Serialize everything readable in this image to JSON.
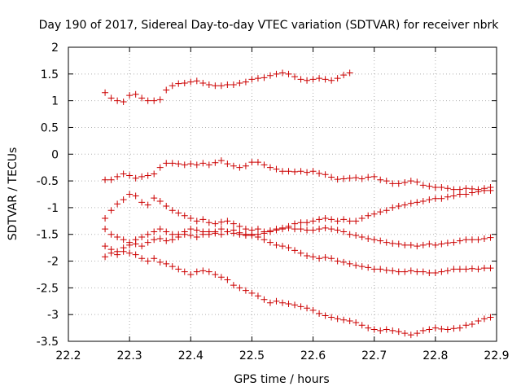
{
  "chart_data": {
    "type": "scatter",
    "title": "Day 190 of 2017, Sidereal Day-to-day VTEC variation (SDTVAR) for receiver nbrk",
    "xlabel": "GPS time / hours",
    "ylabel": "SDTVAR / TECUs",
    "xlim": [
      22.2,
      22.9
    ],
    "ylim": [
      -3.5,
      2
    ],
    "xticks": [
      "22.2",
      "22.3",
      "22.4",
      "22.5",
      "22.6",
      "22.7",
      "22.8",
      "22.9"
    ],
    "yticks": [
      "-3.5",
      "-3",
      "-2.5",
      "-2",
      "-1.5",
      "-1",
      "-0.5",
      "0",
      "0.5",
      "1",
      "1.5",
      "2"
    ],
    "grid": true,
    "marker": "+",
    "color": "#cc0000",
    "series": [
      {
        "name": "s1",
        "x": [
          22.26,
          22.27,
          22.28,
          22.29,
          22.3,
          22.31,
          22.32,
          22.33,
          22.34,
          22.35,
          22.36,
          22.37,
          22.38,
          22.39,
          22.4,
          22.41,
          22.42,
          22.43,
          22.44,
          22.45,
          22.46,
          22.47,
          22.48,
          22.49,
          22.5,
          22.51,
          22.52,
          22.53,
          22.54,
          22.55,
          22.56,
          22.57,
          22.58,
          22.59,
          22.6,
          22.61,
          22.62,
          22.63,
          22.64,
          22.65,
          22.66
        ],
        "y": [
          1.15,
          1.05,
          1.0,
          0.98,
          1.1,
          1.12,
          1.05,
          1.0,
          1.0,
          1.02,
          1.2,
          1.28,
          1.32,
          1.33,
          1.35,
          1.37,
          1.33,
          1.3,
          1.28,
          1.28,
          1.3,
          1.3,
          1.33,
          1.35,
          1.4,
          1.42,
          1.43,
          1.47,
          1.5,
          1.52,
          1.5,
          1.45,
          1.4,
          1.38,
          1.4,
          1.42,
          1.4,
          1.38,
          1.42,
          1.48,
          1.52
        ]
      },
      {
        "name": "s2",
        "x": [
          22.26,
          22.27,
          22.28,
          22.29,
          22.3,
          22.31,
          22.32,
          22.33,
          22.34,
          22.35,
          22.36,
          22.37,
          22.38,
          22.39,
          22.4,
          22.41,
          22.42,
          22.43,
          22.44,
          22.45,
          22.46,
          22.47,
          22.48,
          22.49,
          22.5,
          22.51,
          22.52,
          22.53,
          22.54,
          22.55,
          22.56,
          22.57,
          22.58,
          22.59,
          22.6,
          22.61,
          22.62,
          22.63,
          22.64,
          22.65,
          22.66,
          22.67,
          22.68,
          22.69,
          22.7,
          22.71,
          22.72,
          22.73,
          22.74,
          22.75,
          22.76,
          22.77,
          22.78,
          22.79,
          22.8,
          22.81,
          22.82,
          22.83,
          22.84,
          22.85,
          22.86,
          22.87,
          22.88,
          22.89
        ],
        "y": [
          -0.48,
          -0.48,
          -0.42,
          -0.37,
          -0.4,
          -0.45,
          -0.42,
          -0.4,
          -0.37,
          -0.25,
          -0.17,
          -0.17,
          -0.18,
          -0.2,
          -0.18,
          -0.2,
          -0.17,
          -0.2,
          -0.16,
          -0.12,
          -0.18,
          -0.22,
          -0.25,
          -0.22,
          -0.15,
          -0.15,
          -0.2,
          -0.25,
          -0.28,
          -0.32,
          -0.32,
          -0.33,
          -0.32,
          -0.34,
          -0.32,
          -0.36,
          -0.38,
          -0.43,
          -0.47,
          -0.46,
          -0.45,
          -0.44,
          -0.46,
          -0.43,
          -0.42,
          -0.48,
          -0.5,
          -0.55,
          -0.55,
          -0.53,
          -0.5,
          -0.52,
          -0.58,
          -0.6,
          -0.62,
          -0.62,
          -0.64,
          -0.66,
          -0.66,
          -0.64,
          -0.65,
          -0.66,
          -0.64,
          -0.62
        ]
      },
      {
        "name": "s3",
        "x": [
          22.26,
          22.27,
          22.28,
          22.29,
          22.3,
          22.31,
          22.32,
          22.33,
          22.34,
          22.35,
          22.36,
          22.37,
          22.38,
          22.39,
          22.4,
          22.41,
          22.42,
          22.43,
          22.44,
          22.45,
          22.46,
          22.47,
          22.48,
          22.49,
          22.5,
          22.51,
          22.52,
          22.53,
          22.54,
          22.55,
          22.56,
          22.57,
          22.58,
          22.59,
          22.6,
          22.61,
          22.62,
          22.63,
          22.64,
          22.65,
          22.66,
          22.67,
          22.68,
          22.69,
          22.7,
          22.71,
          22.72,
          22.73,
          22.74,
          22.75,
          22.76,
          22.77,
          22.78,
          22.79,
          22.8,
          22.81,
          22.82,
          22.83,
          22.84,
          22.85,
          22.86,
          22.87,
          22.88,
          22.89
        ],
        "y": [
          -1.2,
          -1.05,
          -0.93,
          -0.85,
          -0.75,
          -0.78,
          -0.9,
          -0.95,
          -0.82,
          -0.88,
          -0.97,
          -1.05,
          -1.1,
          -1.15,
          -1.2,
          -1.25,
          -1.22,
          -1.28,
          -1.3,
          -1.27,
          -1.25,
          -1.3,
          -1.35,
          -1.4,
          -1.42,
          -1.4,
          -1.45,
          -1.43,
          -1.4,
          -1.38,
          -1.35,
          -1.3,
          -1.28,
          -1.28,
          -1.25,
          -1.22,
          -1.2,
          -1.22,
          -1.25,
          -1.22,
          -1.25,
          -1.25,
          -1.2,
          -1.15,
          -1.12,
          -1.08,
          -1.05,
          -1.0,
          -0.97,
          -0.95,
          -0.92,
          -0.9,
          -0.88,
          -0.85,
          -0.83,
          -0.83,
          -0.8,
          -0.78,
          -0.75,
          -0.75,
          -0.72,
          -0.7,
          -0.68,
          -0.68
        ]
      },
      {
        "name": "s4",
        "x": [
          22.26,
          22.27,
          22.28,
          22.29,
          22.3,
          22.31,
          22.32,
          22.33,
          22.34,
          22.35,
          22.36,
          22.37,
          22.38,
          22.39,
          22.4,
          22.41,
          22.42,
          22.43,
          22.44,
          22.45,
          22.46,
          22.47,
          22.48,
          22.49,
          22.5,
          22.51,
          22.52,
          22.53,
          22.54,
          22.55,
          22.56,
          22.57,
          22.58,
          22.59,
          22.6,
          22.61,
          22.62,
          22.63,
          22.64,
          22.65,
          22.66,
          22.67,
          22.68,
          22.69,
          22.7,
          22.71,
          22.72,
          22.73,
          22.74,
          22.75,
          22.76,
          22.77,
          22.78,
          22.79,
          22.8,
          22.81,
          22.82,
          22.83,
          22.84,
          22.85,
          22.86,
          22.87,
          22.88,
          22.89
        ],
        "y": [
          -1.4,
          -1.5,
          -1.55,
          -1.6,
          -1.65,
          -1.6,
          -1.55,
          -1.5,
          -1.45,
          -1.4,
          -1.45,
          -1.5,
          -1.5,
          -1.45,
          -1.4,
          -1.42,
          -1.45,
          -1.5,
          -1.45,
          -1.4,
          -1.45,
          -1.48,
          -1.5,
          -1.52,
          -1.5,
          -1.5,
          -1.48,
          -1.45,
          -1.42,
          -1.4,
          -1.38,
          -1.4,
          -1.4,
          -1.42,
          -1.42,
          -1.4,
          -1.38,
          -1.4,
          -1.42,
          -1.45,
          -1.5,
          -1.52,
          -1.55,
          -1.58,
          -1.6,
          -1.62,
          -1.65,
          -1.67,
          -1.68,
          -1.7,
          -1.7,
          -1.72,
          -1.7,
          -1.68,
          -1.7,
          -1.68,
          -1.66,
          -1.65,
          -1.62,
          -1.6,
          -1.6,
          -1.6,
          -1.58,
          -1.56
        ]
      },
      {
        "name": "s5",
        "x": [
          22.26,
          22.27,
          22.28,
          22.29,
          22.3,
          22.31,
          22.32,
          22.33,
          22.34,
          22.35,
          22.36,
          22.37,
          22.38,
          22.39,
          22.4,
          22.41,
          22.42,
          22.43,
          22.44,
          22.45,
          22.46,
          22.47,
          22.48,
          22.49,
          22.5,
          22.51,
          22.52,
          22.53,
          22.54,
          22.55,
          22.56,
          22.57,
          22.58,
          22.59,
          22.6,
          22.61,
          22.62,
          22.63,
          22.64,
          22.65,
          22.66,
          22.67,
          22.68,
          22.69,
          22.7,
          22.71,
          22.72,
          22.73,
          22.74,
          22.75,
          22.76,
          22.77,
          22.78,
          22.79,
          22.8,
          22.81,
          22.82,
          22.83,
          22.84,
          22.85,
          22.86,
          22.87,
          22.88,
          22.89
        ],
        "y": [
          -1.72,
          -1.78,
          -1.82,
          -1.75,
          -1.7,
          -1.68,
          -1.72,
          -1.65,
          -1.6,
          -1.58,
          -1.62,
          -1.6,
          -1.55,
          -1.5,
          -1.52,
          -1.55,
          -1.5,
          -1.45,
          -1.48,
          -1.5,
          -1.45,
          -1.42,
          -1.47,
          -1.5,
          -1.52,
          -1.55,
          -1.6,
          -1.65,
          -1.7,
          -1.72,
          -1.75,
          -1.8,
          -1.85,
          -1.9,
          -1.92,
          -1.95,
          -1.93,
          -1.95,
          -2.0,
          -2.02,
          -2.05,
          -2.08,
          -2.1,
          -2.12,
          -2.15,
          -2.15,
          -2.17,
          -2.18,
          -2.2,
          -2.2,
          -2.18,
          -2.2,
          -2.2,
          -2.22,
          -2.22,
          -2.2,
          -2.18,
          -2.15,
          -2.15,
          -2.15,
          -2.14,
          -2.15,
          -2.13,
          -2.13
        ]
      },
      {
        "name": "s6",
        "x": [
          22.26,
          22.27,
          22.28,
          22.29,
          22.3,
          22.31,
          22.32,
          22.33,
          22.34,
          22.35,
          22.36,
          22.37,
          22.38,
          22.39,
          22.4,
          22.41,
          22.42,
          22.43,
          22.44,
          22.45,
          22.46,
          22.47,
          22.48,
          22.49,
          22.5,
          22.51,
          22.52,
          22.53,
          22.54,
          22.55,
          22.56,
          22.57,
          22.58,
          22.59,
          22.6,
          22.61,
          22.62,
          22.63,
          22.64,
          22.65,
          22.66,
          22.67,
          22.68,
          22.69,
          22.7,
          22.71,
          22.72,
          22.73,
          22.74,
          22.75,
          22.76,
          22.77,
          22.78,
          22.79,
          22.8,
          22.81,
          22.82,
          22.83,
          22.84,
          22.85,
          22.86,
          22.87,
          22.88,
          22.89
        ],
        "y": [
          -1.92,
          -1.85,
          -1.88,
          -1.82,
          -1.85,
          -1.88,
          -1.95,
          -2.0,
          -1.95,
          -2.02,
          -2.05,
          -2.1,
          -2.15,
          -2.2,
          -2.25,
          -2.2,
          -2.18,
          -2.2,
          -2.25,
          -2.3,
          -2.35,
          -2.45,
          -2.5,
          -2.55,
          -2.6,
          -2.65,
          -2.72,
          -2.78,
          -2.75,
          -2.78,
          -2.8,
          -2.82,
          -2.85,
          -2.88,
          -2.92,
          -2.98,
          -3.02,
          -3.05,
          -3.08,
          -3.1,
          -3.12,
          -3.15,
          -3.2,
          -3.25,
          -3.28,
          -3.3,
          -3.28,
          -3.3,
          -3.32,
          -3.35,
          -3.38,
          -3.35,
          -3.3,
          -3.28,
          -3.25,
          -3.27,
          -3.28,
          -3.26,
          -3.25,
          -3.2,
          -3.18,
          -3.12,
          -3.08,
          -3.05
        ]
      }
    ]
  }
}
